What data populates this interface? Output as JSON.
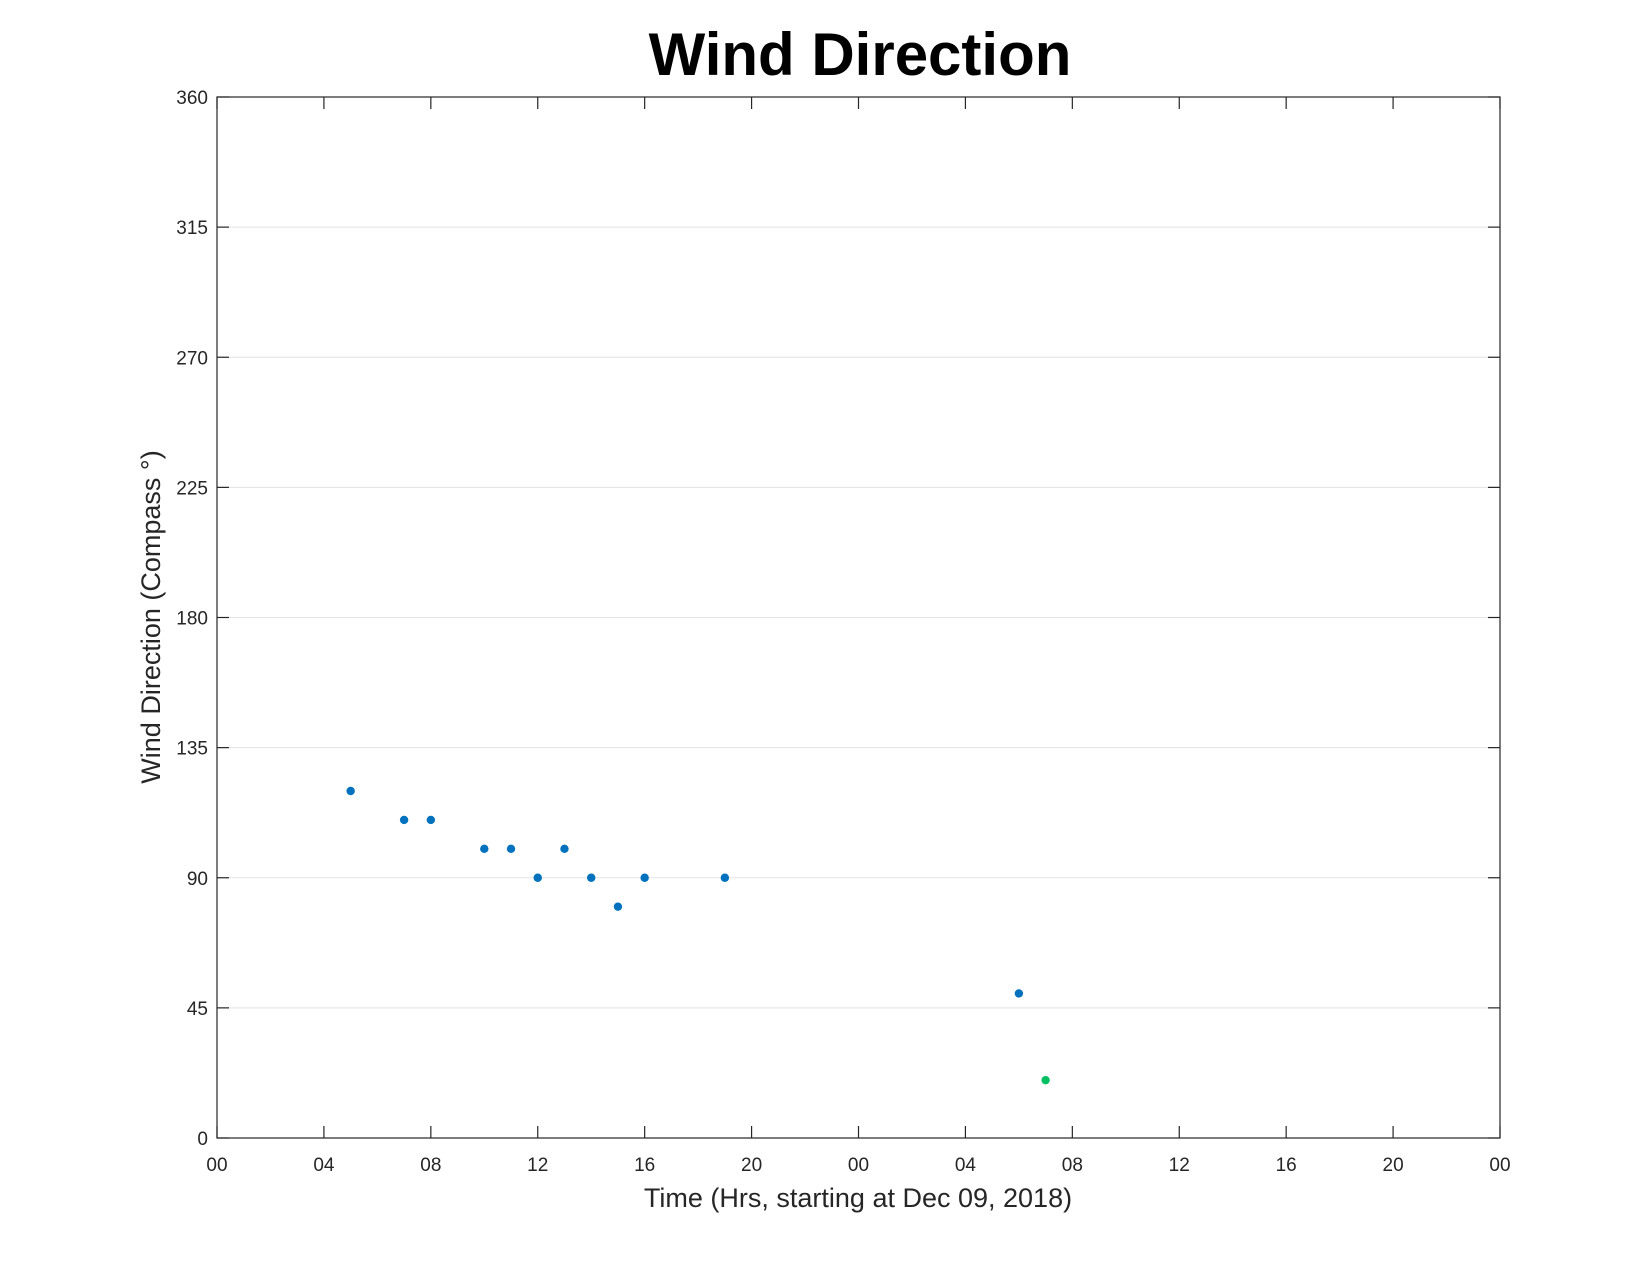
{
  "chart_data": {
    "type": "scatter",
    "title": "Wind Direction",
    "xlabel": "Time (Hrs, starting at Dec 09, 2018)",
    "ylabel": "Wind Direction (Compass °)",
    "x_unit": "hours",
    "xlim": [
      0,
      48
    ],
    "ylim": [
      0,
      360
    ],
    "x_ticks": [
      0,
      4,
      8,
      12,
      16,
      20,
      24,
      28,
      32,
      36,
      40,
      44,
      48
    ],
    "x_tick_labels": [
      "00",
      "04",
      "08",
      "12",
      "16",
      "20",
      "00",
      "04",
      "08",
      "12",
      "16",
      "20",
      "00"
    ],
    "y_ticks": [
      0,
      45,
      90,
      135,
      180,
      225,
      270,
      315,
      360
    ],
    "y_tick_labels": [
      "0",
      "45",
      "90",
      "135",
      "180",
      "225",
      "270",
      "315",
      "360"
    ],
    "grid": "horizontal",
    "series": [
      {
        "color": "#0072bd",
        "x": [
          5,
          7,
          8,
          10,
          11,
          12,
          13,
          14,
          15,
          16,
          19,
          30
        ],
        "y": [
          120,
          110,
          110,
          100,
          100,
          90,
          100,
          90,
          80,
          90,
          90,
          50
        ]
      },
      {
        "color": "#00c060",
        "x": [
          31
        ],
        "y": [
          20
        ]
      }
    ]
  }
}
